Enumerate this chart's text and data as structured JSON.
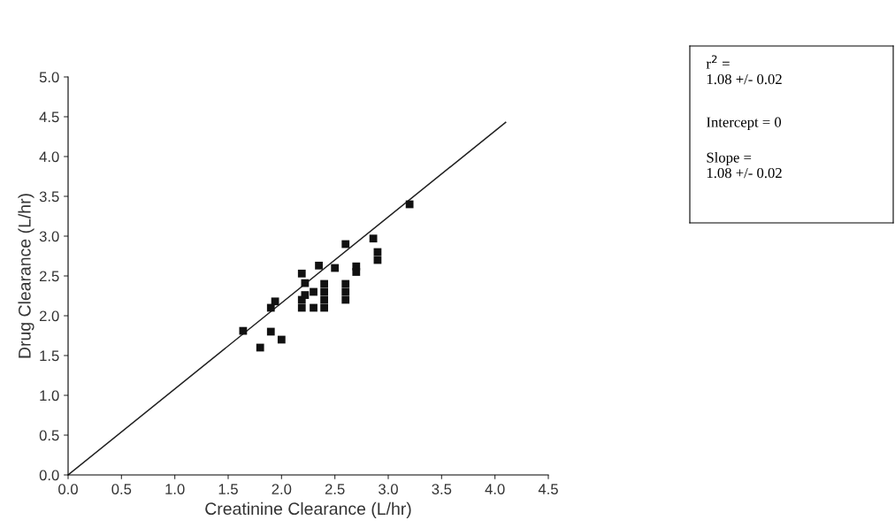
{
  "chart_data": {
    "type": "scatter",
    "xlabel": "Creatinine Clearance (L/hr)",
    "ylabel": "Drug Clearance (L/hr)",
    "xlim": [
      0,
      4.5
    ],
    "xticks": [
      {
        "value": 0,
        "label": "0.0"
      },
      {
        "value": 0.5,
        "label": "0.5"
      },
      {
        "value": 1,
        "label": "1.0"
      },
      {
        "value": 1.5,
        "label": "1.5"
      },
      {
        "value": 2,
        "label": "2.0"
      },
      {
        "value": 2.5,
        "label": "2.5"
      },
      {
        "value": 3,
        "label": "3.0"
      },
      {
        "value": 3.5,
        "label": "3.5"
      },
      {
        "value": 4,
        "label": "4.0"
      },
      {
        "value": 4.5,
        "label": "4.5"
      }
    ],
    "ylim": [
      0,
      5
    ],
    "yticks": [
      {
        "value": 0,
        "label": "0.0"
      },
      {
        "value": 0.5,
        "label": "0.5"
      },
      {
        "value": 1,
        "label": "1.0"
      },
      {
        "value": 1.5,
        "label": "1.5"
      },
      {
        "value": 2,
        "label": "2.0"
      },
      {
        "value": 2.5,
        "label": "2.5"
      },
      {
        "value": 3,
        "label": "3.0"
      },
      {
        "value": 3.5,
        "label": "3.5"
      },
      {
        "value": 4,
        "label": "4.0"
      },
      {
        "value": 4.5,
        "label": "4.5"
      },
      {
        "value": 5,
        "label": "5.0"
      }
    ],
    "grid": false,
    "legend": false,
    "marker": "square",
    "series": [
      {
        "color": "#111111",
        "x": [
          1.64,
          1.8,
          1.9,
          1.9,
          1.94,
          2.0,
          2.19,
          2.22,
          2.19,
          2.19,
          2.22,
          2.3,
          2.3,
          2.35,
          2.4,
          2.4,
          2.4,
          2.4,
          2.5,
          2.6,
          2.6,
          2.6,
          2.6,
          2.7,
          2.7,
          2.86,
          2.9,
          2.9,
          3.2
        ],
        "values": [
          1.81,
          1.6,
          1.8,
          2.1,
          2.18,
          1.7,
          2.53,
          2.41,
          2.1,
          2.2,
          2.26,
          2.3,
          2.1,
          2.63,
          2.1,
          2.2,
          2.3,
          2.4,
          2.6,
          2.9,
          2.2,
          2.3,
          2.4,
          2.55,
          2.62,
          2.97,
          2.7,
          2.8,
          3.4
        ]
      },
      {
        "type": "line",
        "color": "#222222",
        "line_style": "solid",
        "marker": "none",
        "x": [
          0,
          4.1
        ],
        "values": [
          0,
          4.43
        ]
      }
    ],
    "annotations": [
      "r$^{2}$ =\n1.08 +/- 0.02",
      "Intercept = 0",
      "Slope =\n1.08 +/- 0.02"
    ]
  }
}
